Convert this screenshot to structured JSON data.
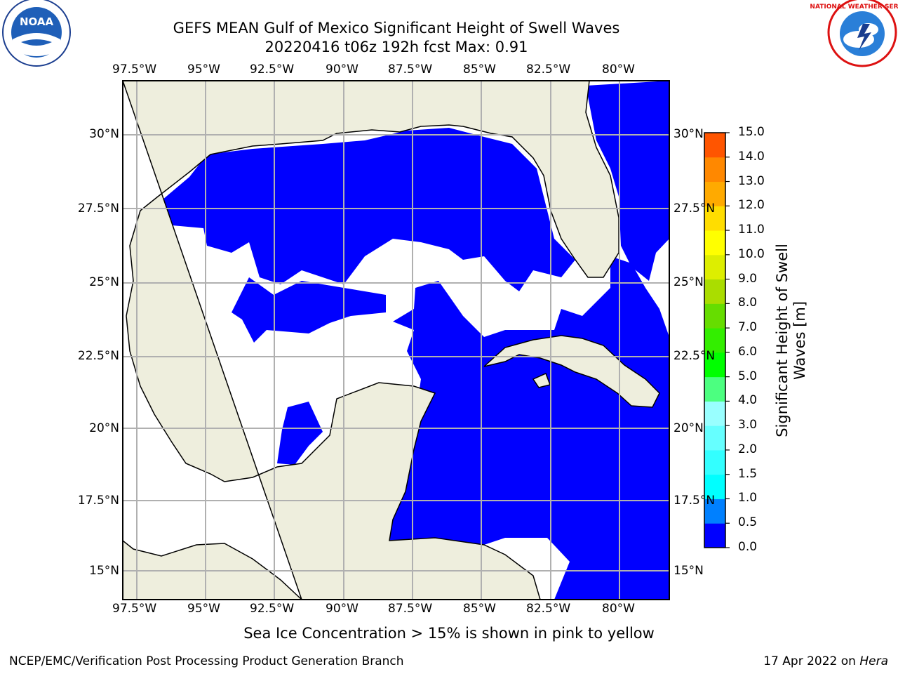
{
  "title_line1": "GEFS MEAN Gulf of Mexico Significant Height of Swell Waves",
  "title_line2": "20220416 t06z 192h fcst   Max: 0.91",
  "lon_labels": [
    "97.5°W",
    "95°W",
    "92.5°W",
    "90°W",
    "87.5°W",
    "85°W",
    "82.5°W",
    "80°W"
  ],
  "lat_labels_left": [
    "30°N",
    "27.5°N",
    "25°N",
    "22.5°N",
    "20°N",
    "17.5°N",
    "15°N"
  ],
  "lat_labels_right": [
    "30°N",
    "27.5°N",
    "25°N",
    "22.5°N",
    "20°N",
    "17.5°N",
    "15°N"
  ],
  "colorbar": {
    "title_line1": "Significant Height of Swell",
    "title_line2": "Waves [m]",
    "ticks": [
      "0.0",
      "0.5",
      "1.0",
      "1.5",
      "2.0",
      "3.0",
      "4.0",
      "5.0",
      "6.0",
      "7.0",
      "8.0",
      "9.0",
      "10.0",
      "11.0",
      "12.0",
      "13.0",
      "14.0",
      "15.0"
    ],
    "colors": [
      "#0000ff",
      "#0080ff",
      "#00ffff",
      "#33ffff",
      "#66ffff",
      "#99ffff",
      "#4cff80",
      "#00ff00",
      "#33ee00",
      "#66dd00",
      "#aadd00",
      "#ddee00",
      "#ffff00",
      "#ffdd00",
      "#ffaa00",
      "#ff8800",
      "#ff5500",
      "#ff2200",
      "#ff0000"
    ]
  },
  "colors": {
    "land": "#eeeedd",
    "swell_low": "#0000ff",
    "swell_mid": "#0080ff",
    "grid": "#b0b0b0"
  },
  "bottom_note": "Sea Ice Concentration > 15% is shown in pink to yellow",
  "footer_left": "NCEP/EMC/Verification Post Processing Product Generation Branch",
  "footer_right_text": "17 Apr 2022 on ",
  "footer_right_host": "Hera",
  "logos": {
    "left": "noaa-logo",
    "right": "national-weather-service-logo"
  }
}
